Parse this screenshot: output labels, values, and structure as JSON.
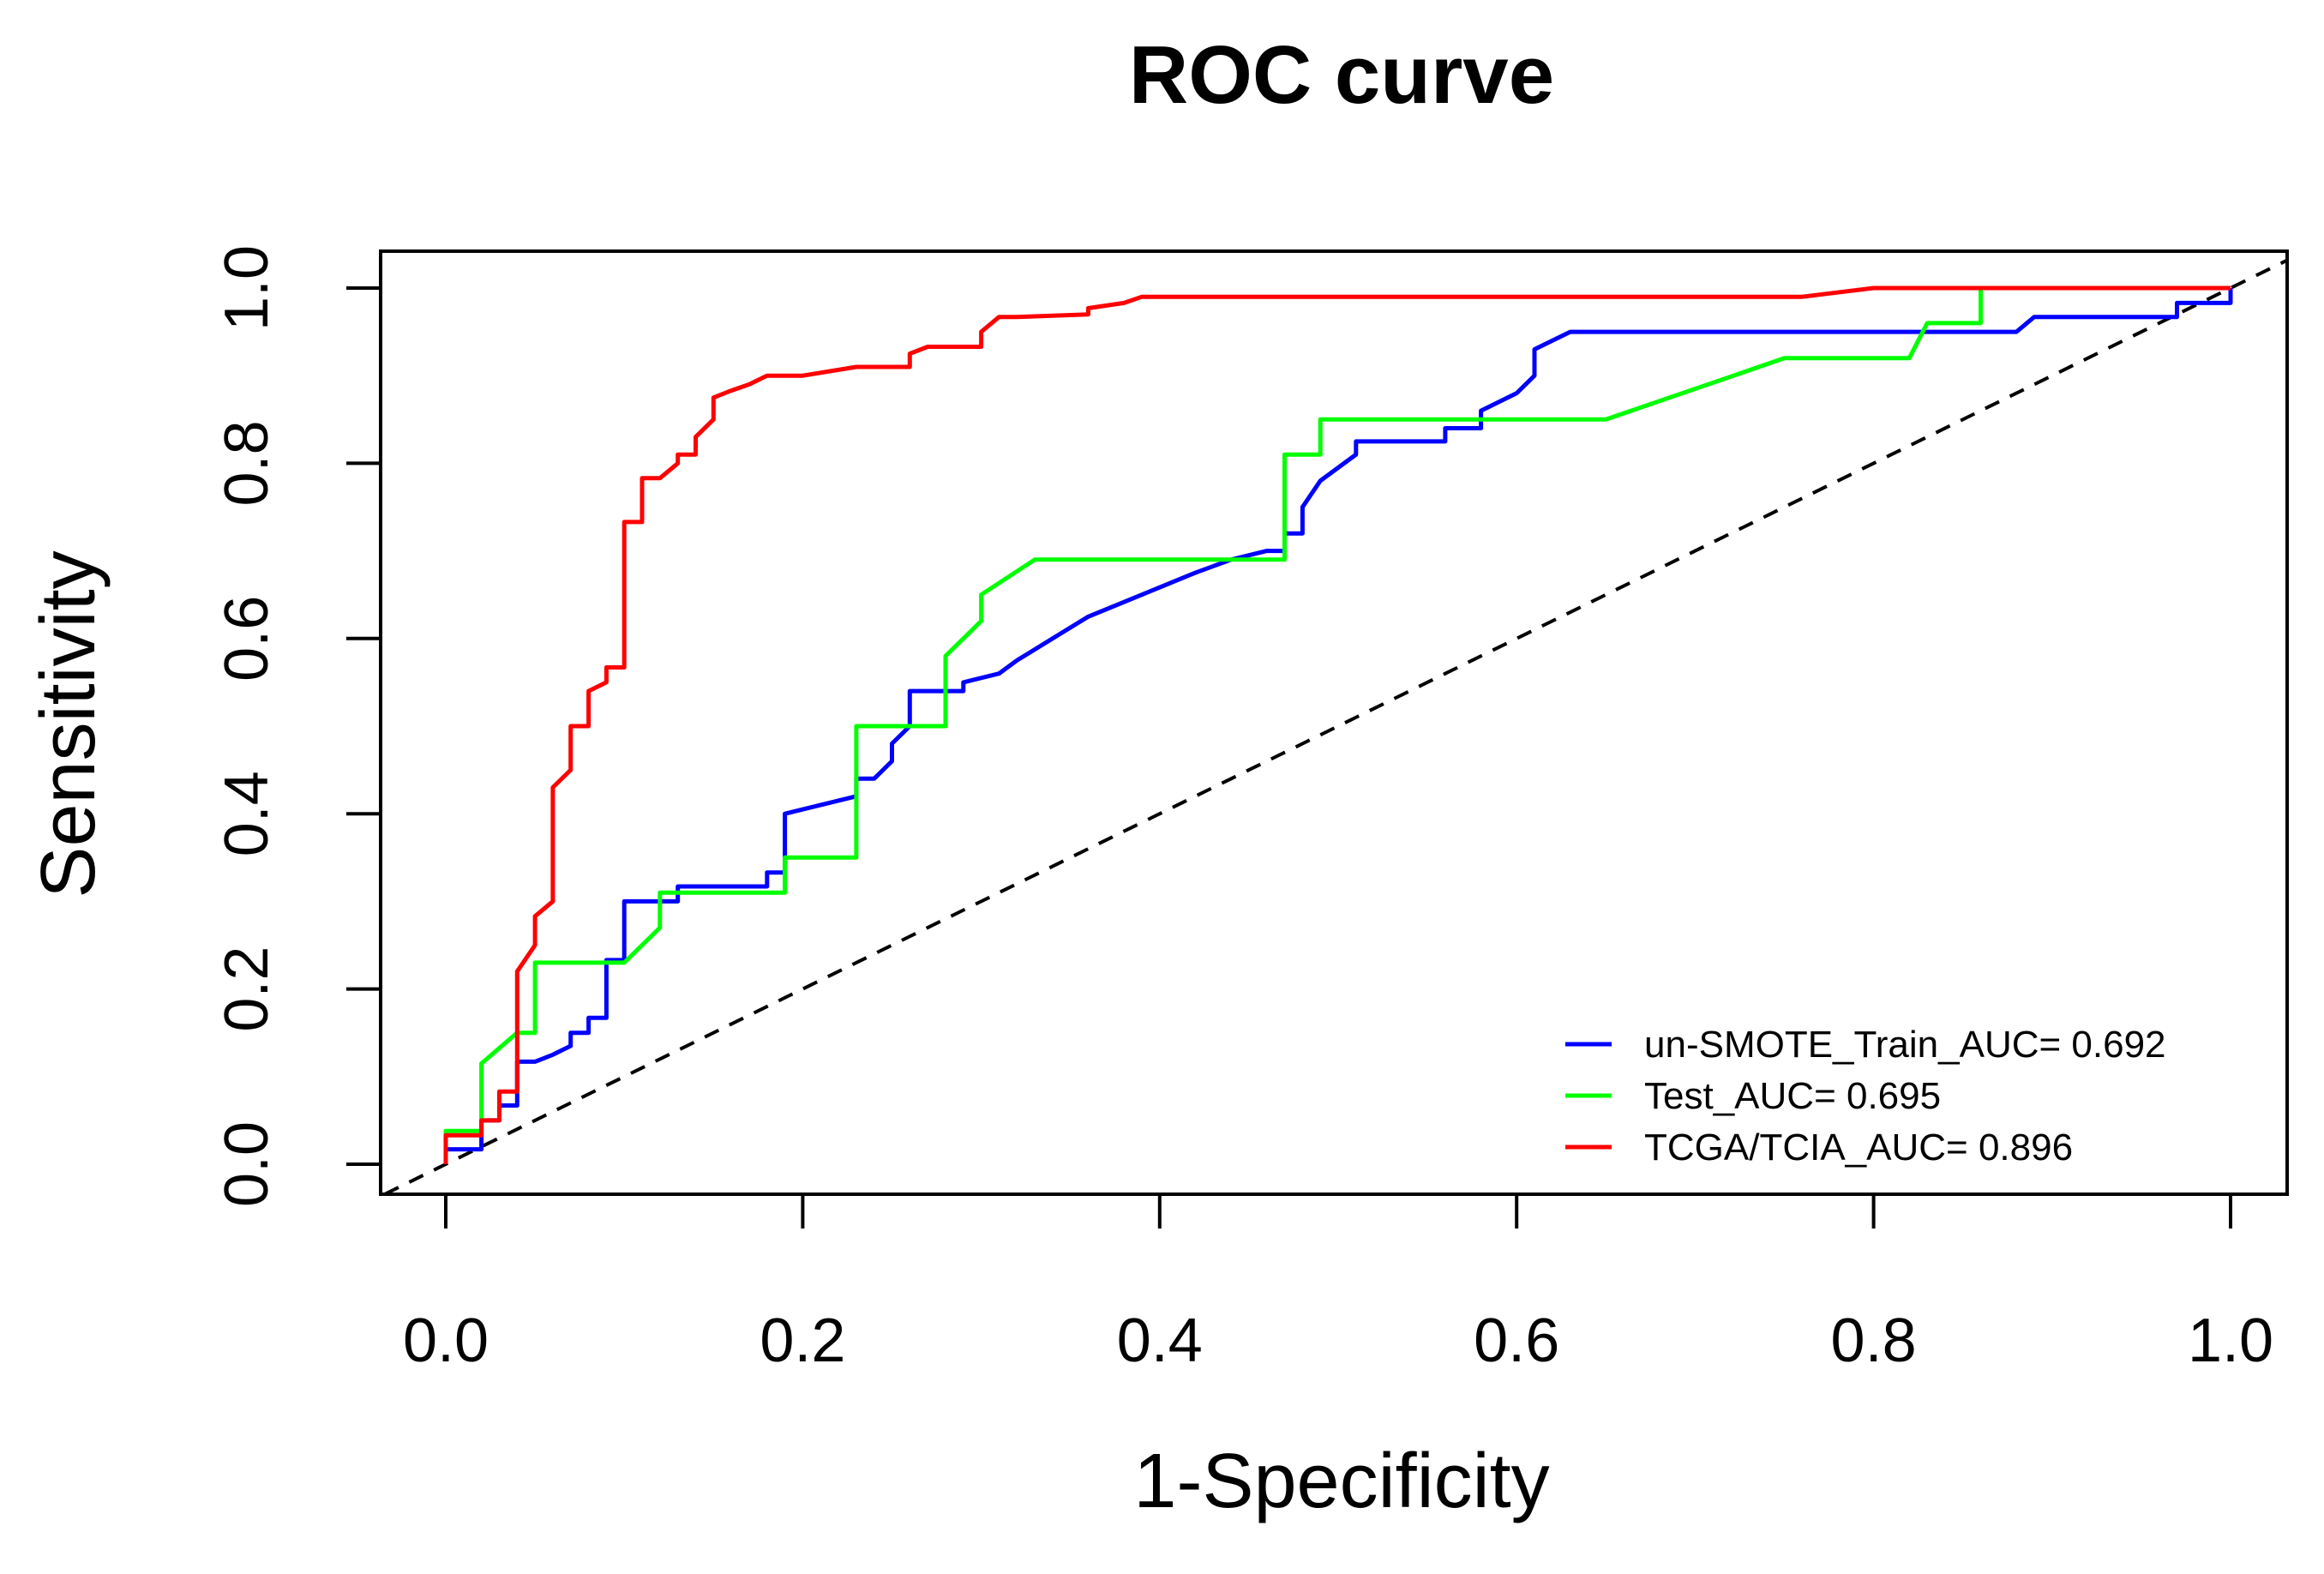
{
  "chart_data": {
    "type": "line",
    "title": "ROC curve",
    "xlabel": "1-Specificity",
    "ylabel": "Sensitivity",
    "xlim": [
      0,
      1
    ],
    "ylim": [
      0,
      1
    ],
    "x_ticks": [
      "0.0",
      "0.2",
      "0.4",
      "0.6",
      "0.8",
      "1.0"
    ],
    "y_ticks": [
      "0.0",
      "0.2",
      "0.4",
      "0.6",
      "0.8",
      "1.0"
    ],
    "diagonal": {
      "style": "dashed",
      "color": "#000000",
      "from": [
        0,
        0
      ],
      "to": [
        1,
        1
      ]
    },
    "legend_position": "bottom-right",
    "series": [
      {
        "name": "un-SMOTE_Train_AUC= 0.692",
        "color": "#0000ff",
        "x": [
          0,
          0,
          0.02,
          0.02,
          0.03,
          0.03,
          0.04,
          0.04,
          0.05,
          0.06,
          0.07,
          0.07,
          0.08,
          0.08,
          0.09,
          0.09,
          0.1,
          0.1,
          0.13,
          0.13,
          0.18,
          0.18,
          0.19,
          0.19,
          0.23,
          0.23,
          0.24,
          0.25,
          0.25,
          0.26,
          0.26,
          0.29,
          0.29,
          0.31,
          0.31,
          0.32,
          0.34,
          0.36,
          0.39,
          0.42,
          0.44,
          0.46,
          0.47,
          0.47,
          0.48,
          0.48,
          0.49,
          0.51,
          0.51,
          0.56,
          0.56,
          0.58,
          0.58,
          0.6,
          0.61,
          0.61,
          0.63,
          0.88,
          0.89,
          0.97,
          0.97,
          1.0,
          1.0
        ],
        "y": [
          0,
          0.017,
          0.017,
          0.05,
          0.05,
          0.067,
          0.067,
          0.117,
          0.117,
          0.125,
          0.135,
          0.15,
          0.15,
          0.167,
          0.167,
          0.233,
          0.233,
          0.3,
          0.3,
          0.317,
          0.317,
          0.333,
          0.333,
          0.4,
          0.42,
          0.44,
          0.44,
          0.46,
          0.48,
          0.5,
          0.54,
          0.54,
          0.55,
          0.56,
          0.56,
          0.575,
          0.6,
          0.625,
          0.65,
          0.675,
          0.69,
          0.7,
          0.7,
          0.72,
          0.72,
          0.75,
          0.78,
          0.81,
          0.825,
          0.825,
          0.84,
          0.84,
          0.86,
          0.88,
          0.9,
          0.93,
          0.95,
          0.95,
          0.967,
          0.967,
          0.983,
          0.983,
          1.0
        ]
      },
      {
        "name": "Test_AUC= 0.695",
        "color": "#00ff00",
        "x": [
          0,
          0,
          0.02,
          0.02,
          0.04,
          0.05,
          0.05,
          0.1,
          0.12,
          0.12,
          0.19,
          0.19,
          0.23,
          0.23,
          0.28,
          0.28,
          0.3,
          0.3,
          0.33,
          0.47,
          0.47,
          0.49,
          0.49,
          0.65,
          0.75,
          0.82,
          0.83,
          0.86,
          0.86
        ],
        "y": [
          0,
          0.038,
          0.038,
          0.115,
          0.15,
          0.15,
          0.23,
          0.23,
          0.27,
          0.31,
          0.31,
          0.35,
          0.35,
          0.5,
          0.5,
          0.58,
          0.62,
          0.65,
          0.69,
          0.69,
          0.81,
          0.81,
          0.85,
          0.85,
          0.92,
          0.92,
          0.96,
          0.96,
          1.0
        ]
      },
      {
        "name": "TCGA/TCIA_AUC= 0.896",
        "color": "#ff0000",
        "x": [
          0,
          0,
          0.02,
          0.02,
          0.03,
          0.03,
          0.04,
          0.04,
          0.05,
          0.05,
          0.06,
          0.06,
          0.07,
          0.07,
          0.08,
          0.08,
          0.09,
          0.09,
          0.1,
          0.1,
          0.11,
          0.11,
          0.12,
          0.13,
          0.13,
          0.14,
          0.14,
          0.15,
          0.15,
          0.16,
          0.17,
          0.18,
          0.2,
          0.23,
          0.26,
          0.26,
          0.27,
          0.3,
          0.3,
          0.31,
          0.32,
          0.36,
          0.36,
          0.38,
          0.39,
          0.76,
          0.8,
          1.0
        ],
        "y": [
          0,
          0.033,
          0.033,
          0.05,
          0.05,
          0.083,
          0.083,
          0.22,
          0.25,
          0.283,
          0.3,
          0.43,
          0.45,
          0.5,
          0.5,
          0.54,
          0.55,
          0.567,
          0.567,
          0.733,
          0.733,
          0.783,
          0.783,
          0.8,
          0.81,
          0.81,
          0.83,
          0.85,
          0.875,
          0.883,
          0.89,
          0.9,
          0.9,
          0.91,
          0.91,
          0.925,
          0.933,
          0.933,
          0.95,
          0.967,
          0.967,
          0.97,
          0.977,
          0.983,
          0.99,
          0.99,
          1.0,
          1.0
        ]
      }
    ]
  }
}
